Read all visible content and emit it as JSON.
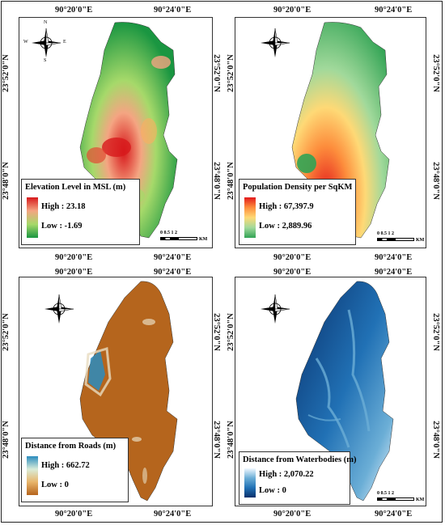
{
  "coords": {
    "lon_left": "90°20'0\"E",
    "lon_right": "90°24'0\"E",
    "lat_top": "23°52'0\"N",
    "lat_bottom": "23°48'0\"N"
  },
  "compass": {
    "n": "N",
    "s": "S",
    "e": "E",
    "w": "W",
    "icon": "north-arrow-compass-icon"
  },
  "scalebar": {
    "ticks": "0  0.5  1       2",
    "unit": "KM"
  },
  "panels": [
    {
      "legend_title": "Elevation Level in MSL (m)",
      "high": "High : 23.18",
      "low": "Low : -1.69",
      "ramp_colors": [
        "#d7191c",
        "#f4a582",
        "#a6d96a",
        "#1a9641"
      ]
    },
    {
      "legend_title": "Population Density per SqKM",
      "high": "High : 67,397.9",
      "low": "Low : 2,889.96",
      "ramp_colors": [
        "#e31a1c",
        "#fd8d3c",
        "#fed976",
        "#a1d99b",
        "#31a354"
      ]
    },
    {
      "legend_title": "Distance from Roads (m)",
      "high": "High : 662.72",
      "low": "Low : 0",
      "ramp_colors": [
        "#2b8cbe",
        "#d9ecd9",
        "#e8b56a",
        "#b5651d"
      ]
    },
    {
      "legend_title": "Distance from Waterbodies (m)",
      "high": "High : 2,070.22",
      "low": "Low : 0",
      "ramp_colors": [
        "#f0f8ff",
        "#6baed6",
        "#2171b5",
        "#08306b"
      ]
    }
  ]
}
